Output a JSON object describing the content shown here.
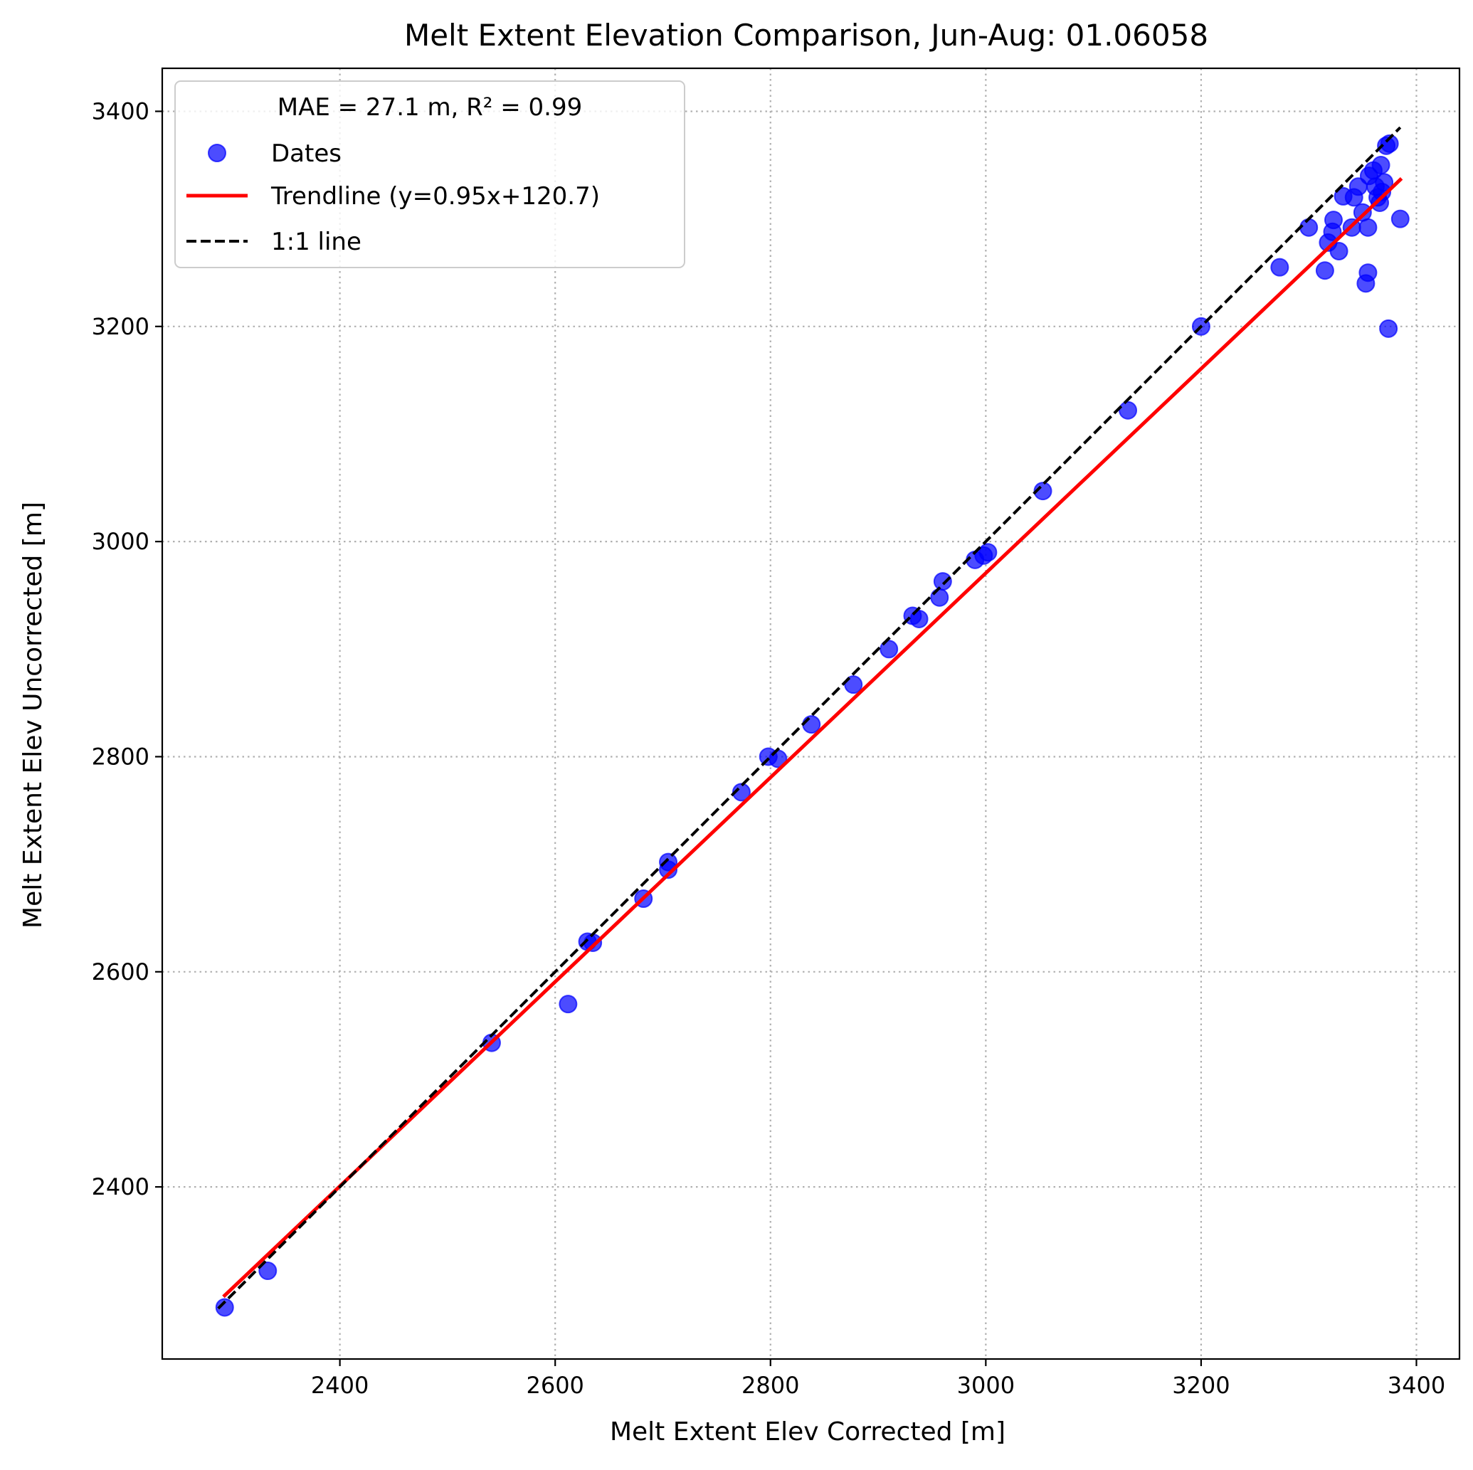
{
  "chart_data": {
    "type": "scatter",
    "title": "Melt Extent Elevation Comparison, Jun-Aug: 01.06058",
    "xlabel": "Melt Extent Elev Corrected [m]",
    "ylabel": "Melt Extent Elev Uncorrected [m]",
    "xlim": [
      2235,
      3440
    ],
    "ylim": [
      2240,
      3440
    ],
    "xticks": [
      2400,
      2600,
      2800,
      3000,
      3200,
      3400
    ],
    "yticks": [
      2400,
      2600,
      2800,
      3000,
      3200,
      3400
    ],
    "grid": true,
    "legend": {
      "location": "upper-left",
      "title": "MAE = 27.1 m,  R² = 0.99",
      "entries": [
        {
          "label": "Dates",
          "kind": "marker",
          "color": "#0000ff"
        },
        {
          "label": "Trendline (y=0.95x+120.7)",
          "kind": "solid-line",
          "color": "#ff0000"
        },
        {
          "label": "1:1 line",
          "kind": "dashed-line",
          "color": "#000000"
        }
      ]
    },
    "series": [
      {
        "name": "Dates",
        "color": "#0000ff",
        "alpha": 0.7,
        "points": [
          {
            "x": 2293,
            "y": 2288
          },
          {
            "x": 2333,
            "y": 2322
          },
          {
            "x": 2541,
            "y": 2534
          },
          {
            "x": 2612,
            "y": 2570
          },
          {
            "x": 2630,
            "y": 2628
          },
          {
            "x": 2635,
            "y": 2627
          },
          {
            "x": 2682,
            "y": 2668
          },
          {
            "x": 2705,
            "y": 2702
          },
          {
            "x": 2705,
            "y": 2695
          },
          {
            "x": 2773,
            "y": 2767
          },
          {
            "x": 2798,
            "y": 2800
          },
          {
            "x": 2807,
            "y": 2798
          },
          {
            "x": 2838,
            "y": 2830
          },
          {
            "x": 2877,
            "y": 2867
          },
          {
            "x": 2910,
            "y": 2900
          },
          {
            "x": 2932,
            "y": 2931
          },
          {
            "x": 2938,
            "y": 2928
          },
          {
            "x": 2957,
            "y": 2948
          },
          {
            "x": 2960,
            "y": 2963
          },
          {
            "x": 2990,
            "y": 2983
          },
          {
            "x": 2998,
            "y": 2987
          },
          {
            "x": 3002,
            "y": 2990
          },
          {
            "x": 3053,
            "y": 3047
          },
          {
            "x": 3132,
            "y": 3122
          },
          {
            "x": 3200,
            "y": 3200
          },
          {
            "x": 3273,
            "y": 3255
          },
          {
            "x": 3300,
            "y": 3292
          },
          {
            "x": 3315,
            "y": 3252
          },
          {
            "x": 3318,
            "y": 3278
          },
          {
            "x": 3322,
            "y": 3288
          },
          {
            "x": 3323,
            "y": 3299
          },
          {
            "x": 3328,
            "y": 3270
          },
          {
            "x": 3332,
            "y": 3321
          },
          {
            "x": 3340,
            "y": 3292
          },
          {
            "x": 3342,
            "y": 3320
          },
          {
            "x": 3346,
            "y": 3330
          },
          {
            "x": 3350,
            "y": 3306
          },
          {
            "x": 3353,
            "y": 3240
          },
          {
            "x": 3355,
            "y": 3250
          },
          {
            "x": 3355,
            "y": 3292
          },
          {
            "x": 3356,
            "y": 3340
          },
          {
            "x": 3360,
            "y": 3345
          },
          {
            "x": 3362,
            "y": 3330
          },
          {
            "x": 3364,
            "y": 3320
          },
          {
            "x": 3366,
            "y": 3315
          },
          {
            "x": 3367,
            "y": 3350
          },
          {
            "x": 3368,
            "y": 3325
          },
          {
            "x": 3370,
            "y": 3334
          },
          {
            "x": 3372,
            "y": 3368
          },
          {
            "x": 3374,
            "y": 3198
          },
          {
            "x": 3375,
            "y": 3370
          },
          {
            "x": 3385,
            "y": 3300
          }
        ]
      }
    ],
    "trendline": {
      "name": "Trendline (y=0.95x+120.7)",
      "slope": 0.95,
      "intercept": 120.7,
      "x_range": [
        2293,
        3385
      ],
      "color": "#ff0000"
    },
    "identity_line": {
      "name": "1:1 line",
      "x_range": [
        2287,
        3385
      ],
      "color": "#000000"
    }
  }
}
